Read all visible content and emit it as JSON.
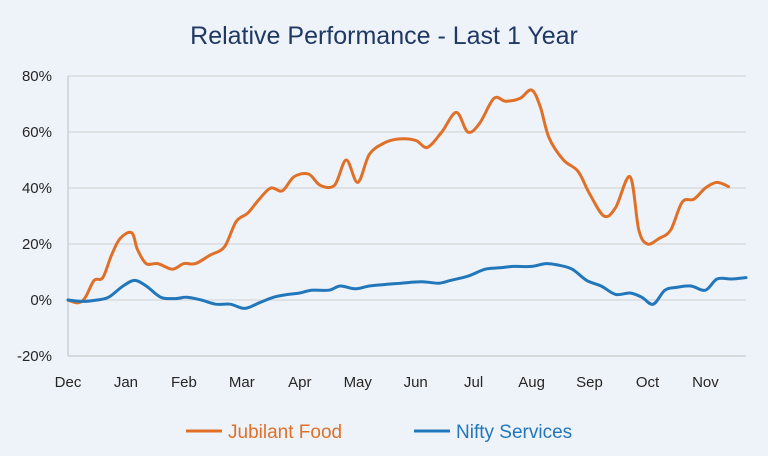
{
  "chart_data": {
    "type": "line",
    "title": "Relative Performance - Last 1 Year",
    "xlabel": "",
    "ylabel": "",
    "ylim": [
      -20,
      80
    ],
    "y_ticks": [
      "80%",
      "60%",
      "40%",
      "20%",
      "0%",
      "-20%"
    ],
    "y_tick_values": [
      80,
      60,
      40,
      20,
      0,
      -20
    ],
    "x_tick_labels": [
      "Dec",
      "Jan",
      "Feb",
      "Mar",
      "Apr",
      "May",
      "Jun",
      "Jul",
      "Aug",
      "Sep",
      "Oct",
      "Nov"
    ],
    "x_range": [
      0,
      11.7
    ],
    "grid": true,
    "legend_position": "bottom",
    "series": [
      {
        "name": "Jubilant Food",
        "color": "#e07028",
        "points": [
          [
            0,
            0
          ],
          [
            0.18,
            -1
          ],
          [
            0.3,
            1
          ],
          [
            0.45,
            7
          ],
          [
            0.6,
            8
          ],
          [
            0.75,
            16
          ],
          [
            0.9,
            22
          ],
          [
            1.1,
            24
          ],
          [
            1.2,
            18
          ],
          [
            1.35,
            13
          ],
          [
            1.55,
            13
          ],
          [
            1.8,
            11
          ],
          [
            2.0,
            13
          ],
          [
            2.2,
            13
          ],
          [
            2.45,
            16
          ],
          [
            2.7,
            19
          ],
          [
            2.9,
            28
          ],
          [
            3.1,
            31
          ],
          [
            3.3,
            36
          ],
          [
            3.5,
            40
          ],
          [
            3.7,
            39
          ],
          [
            3.9,
            44
          ],
          [
            4.15,
            45
          ],
          [
            4.35,
            41
          ],
          [
            4.6,
            41
          ],
          [
            4.8,
            50
          ],
          [
            5.0,
            42
          ],
          [
            5.2,
            52
          ],
          [
            5.45,
            56
          ],
          [
            5.7,
            57.5
          ],
          [
            6.0,
            57
          ],
          [
            6.2,
            54.5
          ],
          [
            6.45,
            60
          ],
          [
            6.7,
            67
          ],
          [
            6.9,
            60
          ],
          [
            7.1,
            63
          ],
          [
            7.35,
            72
          ],
          [
            7.55,
            71
          ],
          [
            7.8,
            72
          ],
          [
            8.0,
            75
          ],
          [
            8.15,
            69
          ],
          [
            8.3,
            58
          ],
          [
            8.55,
            50
          ],
          [
            8.8,
            46
          ],
          [
            9.0,
            38
          ],
          [
            9.25,
            30
          ],
          [
            9.45,
            33
          ],
          [
            9.7,
            44
          ],
          [
            9.85,
            25
          ],
          [
            10.0,
            20
          ],
          [
            10.2,
            22
          ],
          [
            10.4,
            25
          ],
          [
            10.6,
            35
          ],
          [
            10.8,
            36
          ],
          [
            11.0,
            40
          ],
          [
            11.2,
            42
          ],
          [
            11.4,
            40.5
          ]
        ]
      },
      {
        "name": "Nifty Services",
        "color": "#2277bb",
        "points": [
          [
            0,
            0
          ],
          [
            0.25,
            -0.5
          ],
          [
            0.5,
            0
          ],
          [
            0.7,
            1
          ],
          [
            0.95,
            5
          ],
          [
            1.15,
            7
          ],
          [
            1.35,
            5
          ],
          [
            1.6,
            1
          ],
          [
            1.85,
            0.5
          ],
          [
            2.05,
            1
          ],
          [
            2.3,
            0
          ],
          [
            2.55,
            -1.5
          ],
          [
            2.8,
            -1.5
          ],
          [
            3.05,
            -3
          ],
          [
            3.3,
            -1
          ],
          [
            3.55,
            1
          ],
          [
            3.8,
            2
          ],
          [
            4.0,
            2.5
          ],
          [
            4.2,
            3.5
          ],
          [
            4.5,
            3.5
          ],
          [
            4.7,
            5
          ],
          [
            4.95,
            4
          ],
          [
            5.2,
            5
          ],
          [
            5.45,
            5.5
          ],
          [
            5.75,
            6
          ],
          [
            6.1,
            6.5
          ],
          [
            6.4,
            6
          ],
          [
            6.6,
            7
          ],
          [
            6.9,
            8.5
          ],
          [
            7.2,
            11
          ],
          [
            7.45,
            11.5
          ],
          [
            7.7,
            12
          ],
          [
            8.0,
            12
          ],
          [
            8.25,
            13
          ],
          [
            8.45,
            12.5
          ],
          [
            8.7,
            11
          ],
          [
            8.95,
            7
          ],
          [
            9.2,
            5
          ],
          [
            9.45,
            2
          ],
          [
            9.7,
            2.5
          ],
          [
            9.9,
            1
          ],
          [
            10.1,
            -1.5
          ],
          [
            10.3,
            3.5
          ],
          [
            10.5,
            4.5
          ],
          [
            10.75,
            5
          ],
          [
            11.0,
            3.5
          ],
          [
            11.2,
            7.5
          ],
          [
            11.45,
            7.5
          ],
          [
            11.7,
            8
          ]
        ]
      }
    ]
  }
}
